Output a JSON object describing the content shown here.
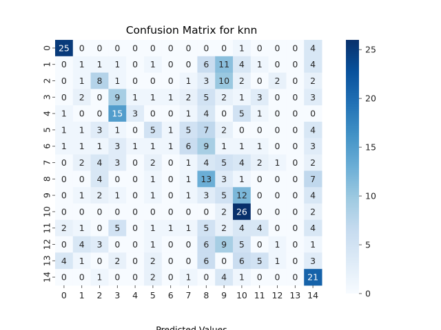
{
  "chart_data": {
    "type": "heatmap",
    "title": "Confusion Matrix for knn",
    "xlabel": "Predicted Values",
    "ylabel": "",
    "x_categories": [
      "0",
      "1",
      "2",
      "3",
      "4",
      "5",
      "6",
      "7",
      "8",
      "9",
      "10",
      "11",
      "12",
      "13",
      "14"
    ],
    "y_categories": [
      "0",
      "1",
      "2",
      "3",
      "4",
      "5",
      "6",
      "7",
      "8",
      "9",
      "10",
      "11",
      "12",
      "13",
      "14"
    ],
    "values": [
      [
        25,
        0,
        0,
        0,
        0,
        0,
        0,
        0,
        0,
        0,
        1,
        0,
        0,
        0,
        4
      ],
      [
        0,
        1,
        1,
        1,
        0,
        1,
        0,
        0,
        6,
        11,
        4,
        1,
        0,
        0,
        4
      ],
      [
        0,
        1,
        8,
        1,
        0,
        0,
        0,
        1,
        3,
        10,
        2,
        0,
        2,
        0,
        2
      ],
      [
        0,
        2,
        0,
        9,
        1,
        1,
        1,
        2,
        5,
        2,
        1,
        3,
        0,
        0,
        3
      ],
      [
        1,
        0,
        0,
        15,
        3,
        0,
        0,
        1,
        4,
        0,
        5,
        1,
        0,
        0,
        0
      ],
      [
        1,
        1,
        3,
        1,
        0,
        5,
        1,
        5,
        7,
        2,
        0,
        0,
        0,
        0,
        4
      ],
      [
        1,
        1,
        1,
        3,
        1,
        1,
        1,
        6,
        9,
        1,
        1,
        1,
        0,
        0,
        3
      ],
      [
        0,
        2,
        4,
        3,
        0,
        2,
        0,
        1,
        4,
        5,
        4,
        2,
        1,
        0,
        2
      ],
      [
        0,
        0,
        4,
        0,
        0,
        1,
        0,
        1,
        13,
        3,
        1,
        0,
        0,
        0,
        7
      ],
      [
        0,
        1,
        2,
        1,
        0,
        1,
        0,
        1,
        3,
        5,
        12,
        0,
        0,
        0,
        4
      ],
      [
        0,
        0,
        0,
        0,
        0,
        0,
        0,
        0,
        0,
        2,
        26,
        0,
        0,
        0,
        2
      ],
      [
        2,
        1,
        0,
        5,
        0,
        1,
        1,
        1,
        5,
        2,
        4,
        4,
        0,
        0,
        4
      ],
      [
        0,
        4,
        3,
        0,
        0,
        1,
        0,
        0,
        6,
        9,
        5,
        0,
        1,
        0,
        1
      ],
      [
        4,
        1,
        0,
        2,
        0,
        2,
        0,
        0,
        6,
        0,
        6,
        5,
        1,
        0,
        3
      ],
      [
        0,
        0,
        1,
        0,
        0,
        2,
        0,
        1,
        0,
        4,
        1,
        0,
        0,
        0,
        21
      ]
    ],
    "colorbar": {
      "min": 0,
      "max": 26,
      "ticks": [
        0,
        5,
        10,
        15,
        20,
        25
      ],
      "colormap": "Blues"
    },
    "colors": {
      "low": "#f7fbff",
      "high": "#08306b"
    }
  }
}
